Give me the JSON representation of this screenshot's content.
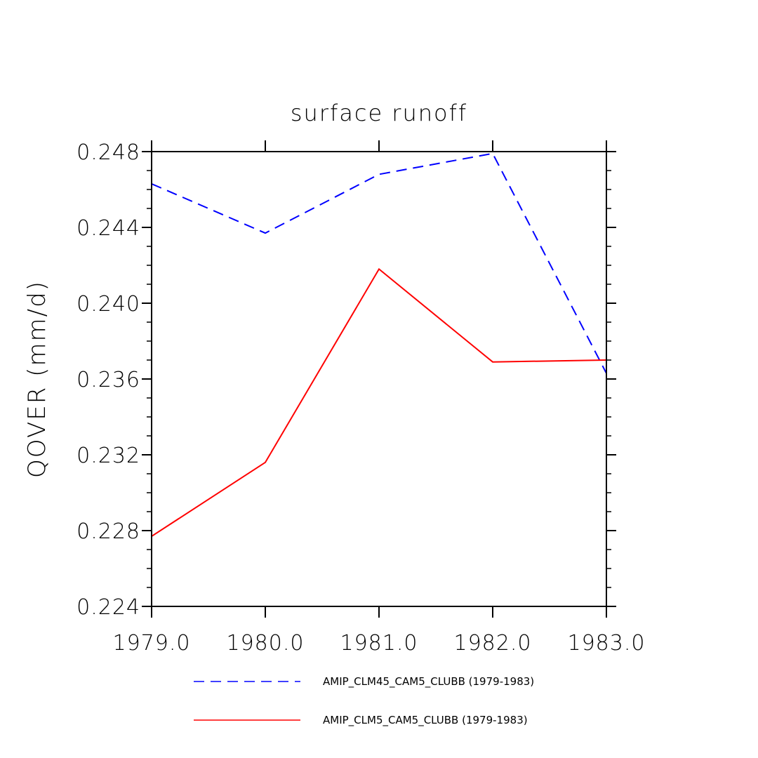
{
  "chart_data": {
    "type": "line",
    "title": "surface runoff",
    "xlabel": "",
    "ylabel": "QOVER  (mm/d)",
    "x": [
      1979,
      1980,
      1981,
      1982,
      1983
    ],
    "xlim": [
      1979,
      1983
    ],
    "ylim": [
      0.224,
      0.248
    ],
    "x_tick_labels": [
      "1979.0",
      "1980.0",
      "1981.0",
      "1982.0",
      "1983.0"
    ],
    "y_tick_labels": [
      "0.224",
      "0.228",
      "0.232",
      "0.236",
      "0.240",
      "0.244",
      "0.248"
    ],
    "y_ticks": [
      0.224,
      0.228,
      0.232,
      0.236,
      0.24,
      0.244,
      0.248
    ],
    "grid": false,
    "legend_position": "bottom",
    "series": [
      {
        "name": "AMIP_CLM45_CAM5_CLUBB (1979-1983)",
        "values": [
          0.2463,
          0.2437,
          0.2468,
          0.2479,
          0.2363
        ],
        "color": "#0000ff",
        "style": "dashed"
      },
      {
        "name": "AMIP_CLM5_CAM5_CLUBB (1979-1983)",
        "values": [
          0.2277,
          0.2316,
          0.2418,
          0.2369,
          0.237
        ],
        "color": "#ff0000",
        "style": "solid"
      }
    ]
  }
}
